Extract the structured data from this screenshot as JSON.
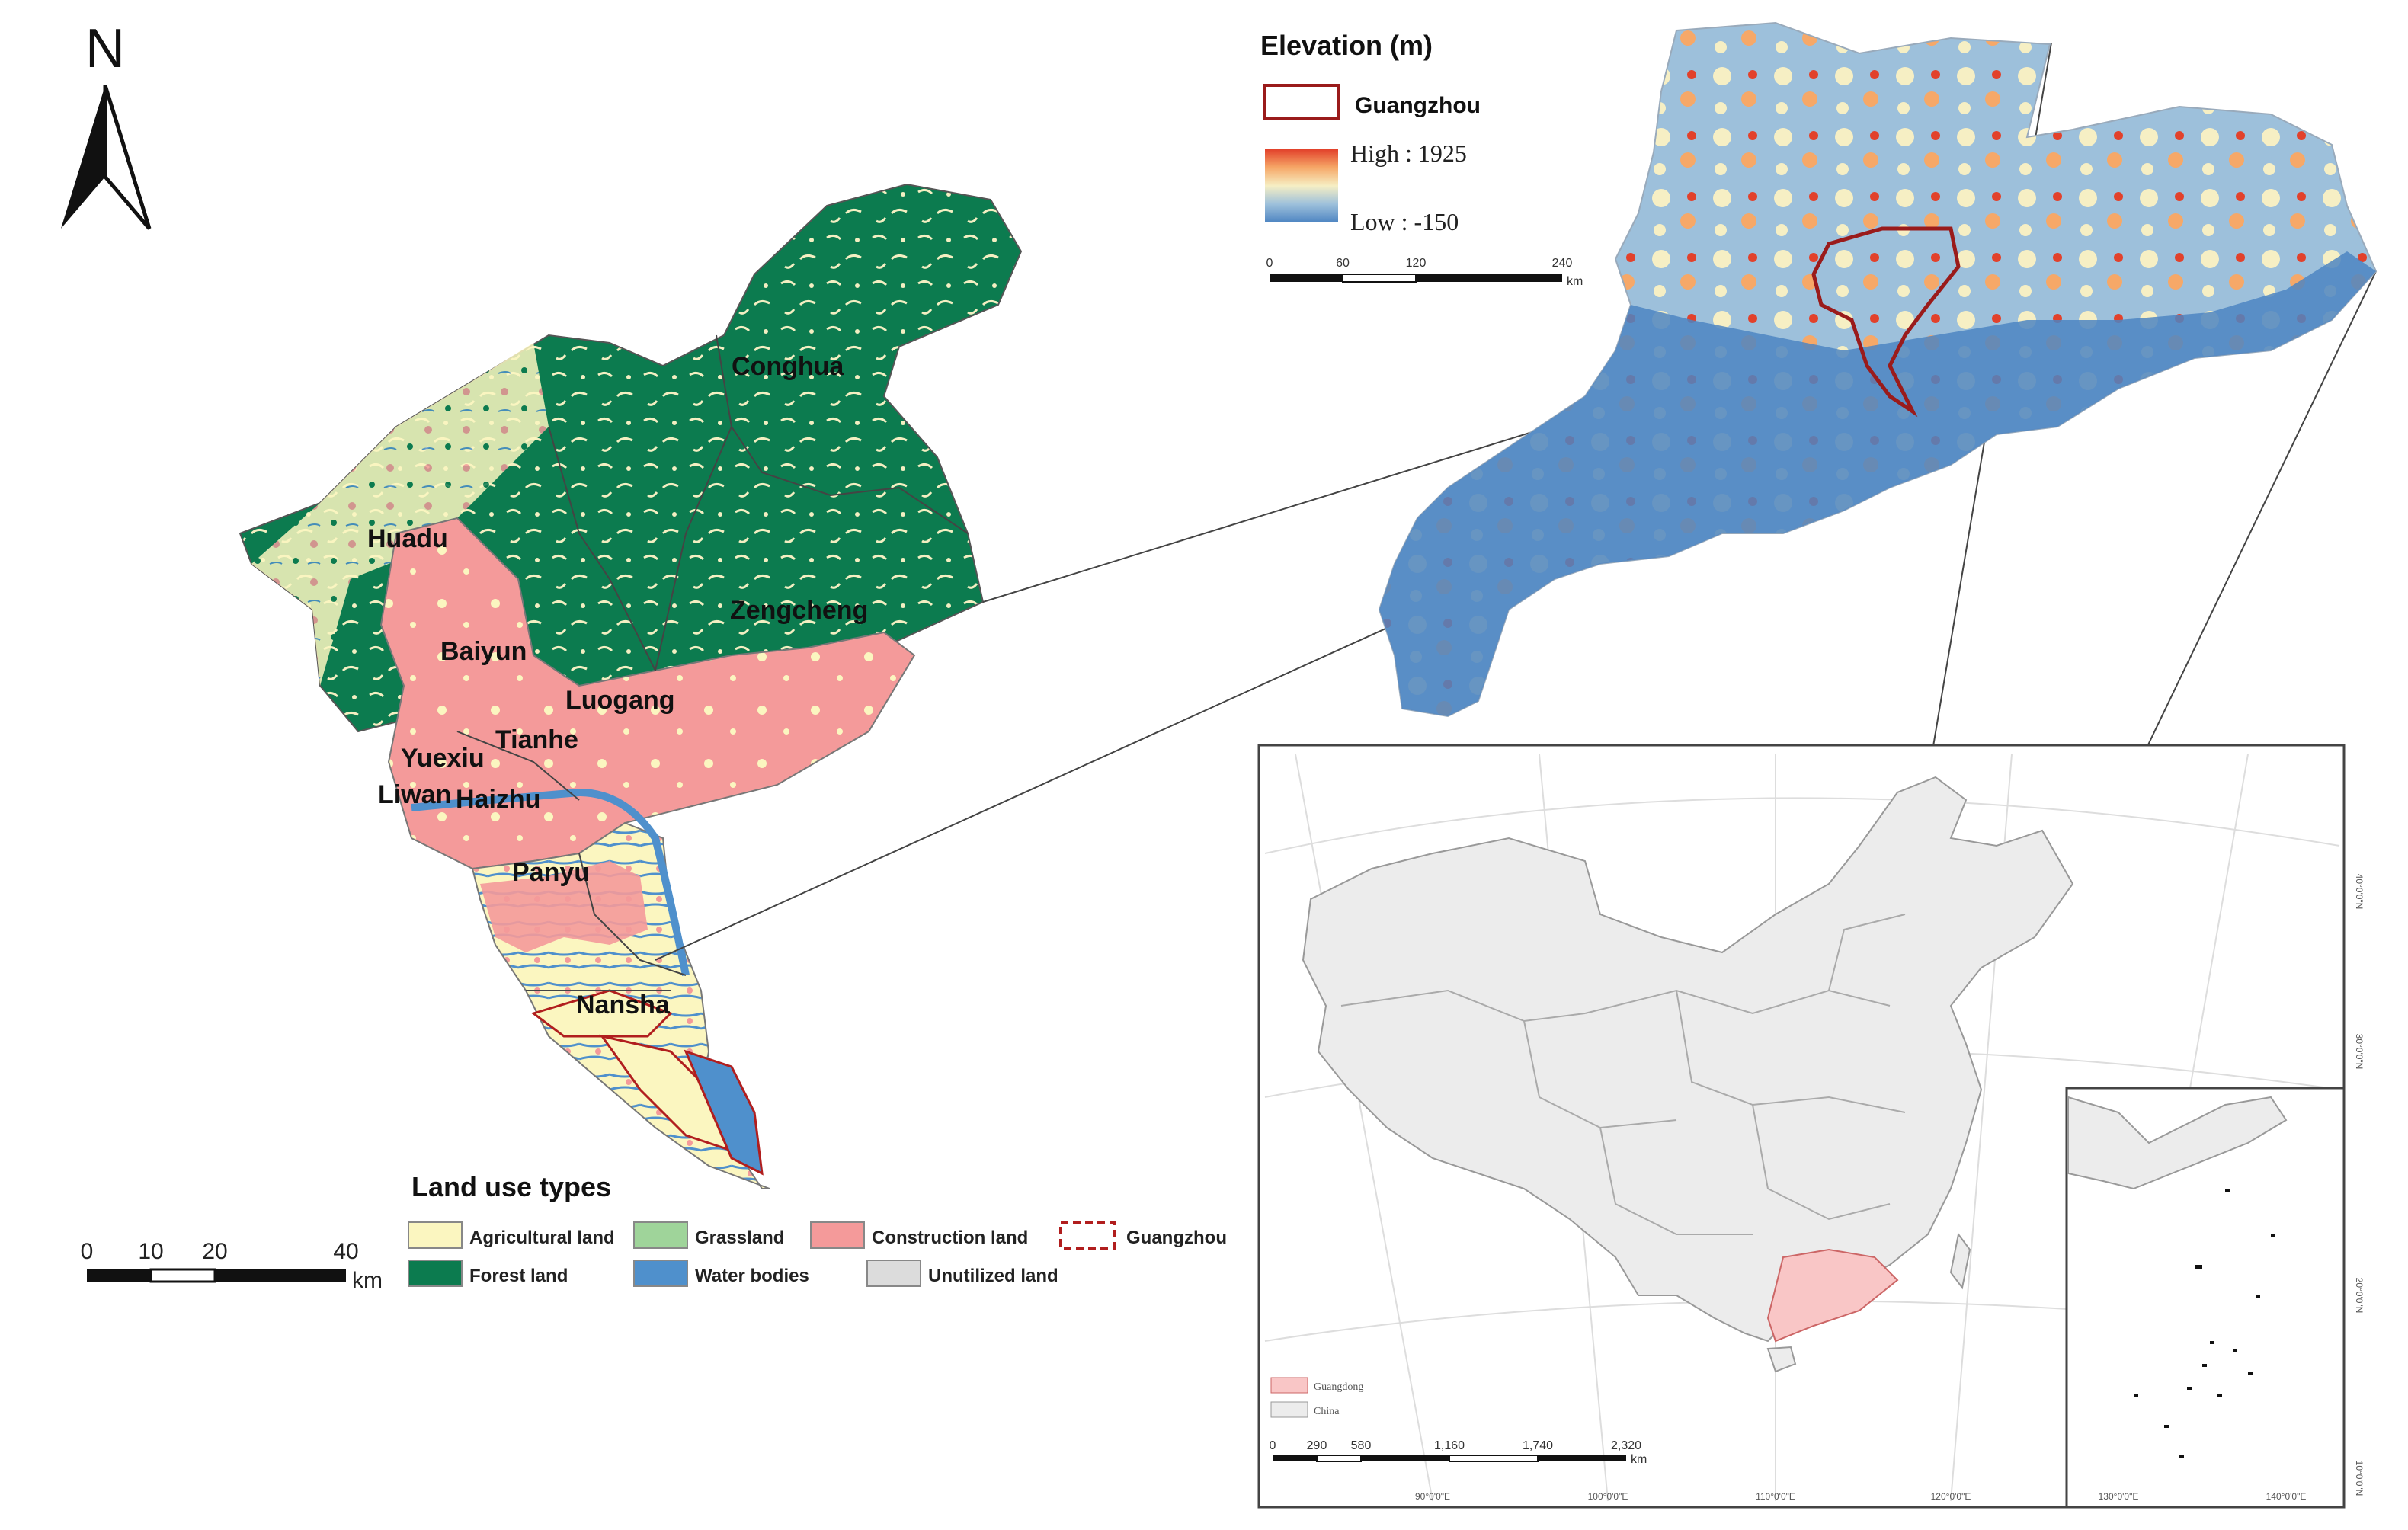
{
  "north_arrow": {
    "label": "N"
  },
  "main_map": {
    "districts": [
      {
        "key": "conghua",
        "label": "Conghua"
      },
      {
        "key": "huadu",
        "label": "Huadu"
      },
      {
        "key": "zengcheng",
        "label": "Zengcheng"
      },
      {
        "key": "baiyun",
        "label": "Baiyun"
      },
      {
        "key": "luogang",
        "label": "Luogang"
      },
      {
        "key": "tianhe",
        "label": "Tianhe"
      },
      {
        "key": "yuexiu",
        "label": "Yuexiu"
      },
      {
        "key": "liwan",
        "label": "Liwan"
      },
      {
        "key": "haizhu",
        "label": "Haizhu"
      },
      {
        "key": "panyu",
        "label": "Panyu"
      },
      {
        "key": "nansha",
        "label": "Nansha"
      }
    ],
    "scale": {
      "ticks": [
        "0",
        "10",
        "20",
        "40"
      ],
      "unit": "km"
    },
    "legend": {
      "title": "Land use types",
      "items": [
        {
          "label": "Agricultural land",
          "color": "#fbf6c0"
        },
        {
          "label": "Forest land",
          "color": "#0c7b4f"
        },
        {
          "label": "Grassland",
          "color": "#9fd49a"
        },
        {
          "label": "Water bodies",
          "color": "#4f90cc"
        },
        {
          "label": "Construction land",
          "color": "#f49a9a"
        },
        {
          "label": "Unutilized land",
          "color": "#dcdcdc"
        },
        {
          "label": "Guangzhou",
          "color": "#b11e1e"
        }
      ]
    }
  },
  "elevation_map": {
    "title": "Elevation (m)",
    "boundary_label": "Guangzhou",
    "high_label": "High : 1925",
    "low_label": "Low : -150",
    "ramp_colors": [
      "#e2412b",
      "#f6a868",
      "#f6efc4",
      "#9dc0db",
      "#4e85c2"
    ],
    "scale": {
      "ticks": [
        "0",
        "60",
        "120",
        "240"
      ],
      "unit": "km"
    }
  },
  "china_map": {
    "legend": [
      {
        "label": "Guangdong",
        "color": "#f9c6c6"
      },
      {
        "label": "China",
        "color": "#ececec"
      }
    ],
    "scale": {
      "ticks": [
        "0",
        "290",
        "580",
        "1,160",
        "1,740",
        "2,320"
      ],
      "unit": "km"
    },
    "lon_labels": [
      "90°0'0\"E",
      "100°0'0\"E",
      "110°0'0\"E",
      "120°0'0\"E",
      "130°0'0\"E",
      "140°0'0\"E"
    ],
    "lat_labels": [
      "40°0'0\"N",
      "30°0'0\"N",
      "20°0'0\"N",
      "10°0'0\"N"
    ]
  }
}
